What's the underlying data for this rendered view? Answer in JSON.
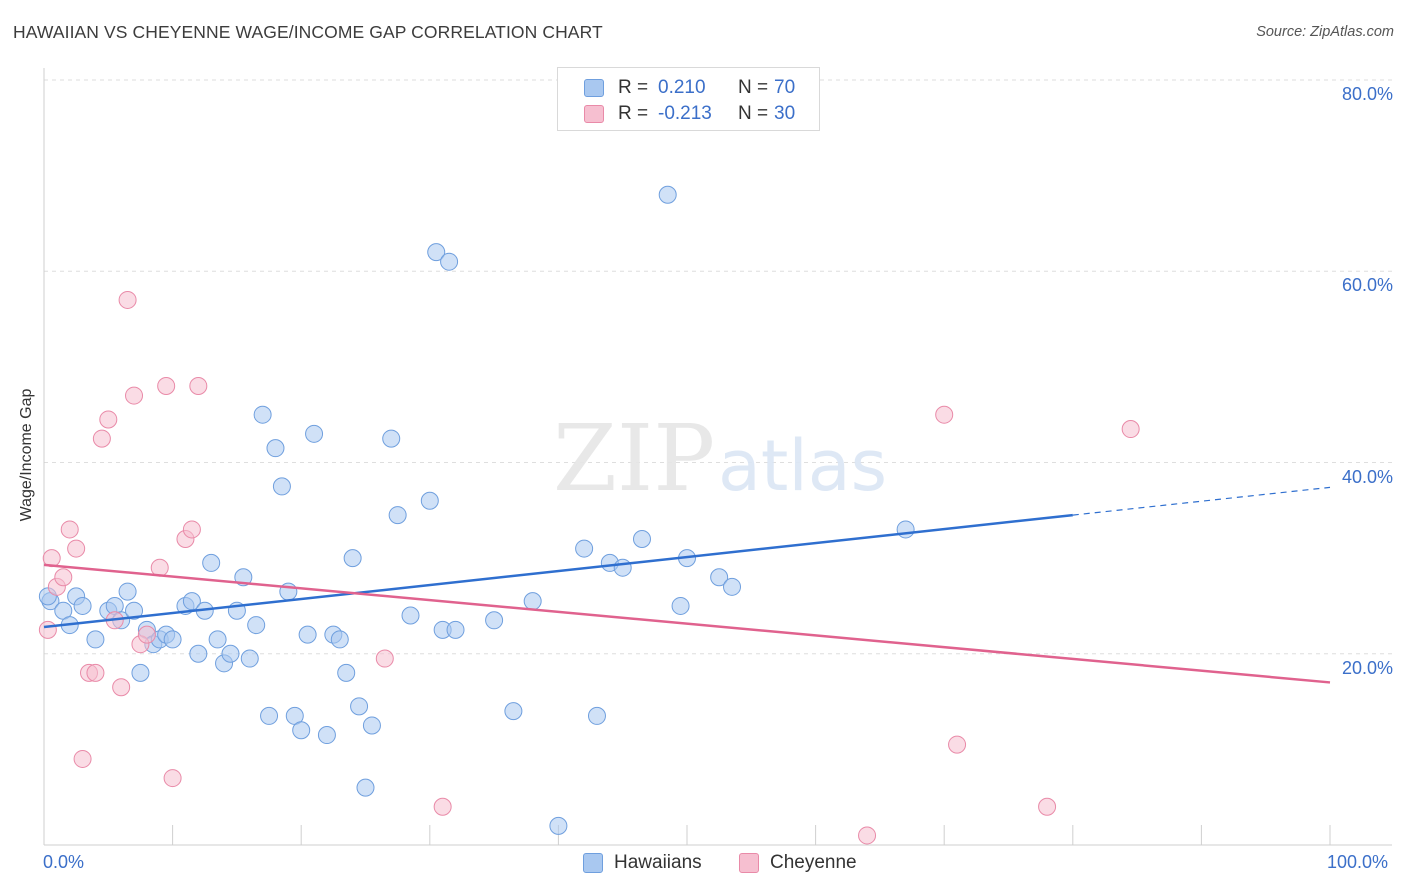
{
  "title": "HAWAIIAN VS CHEYENNE WAGE/INCOME GAP CORRELATION CHART",
  "source": "Source: ZipAtlas.com",
  "watermark": {
    "zip": "ZIP",
    "atlas": "atlas"
  },
  "legend_top": [
    {
      "r_label": "R =",
      "r_value": "0.210",
      "n_label": "N =",
      "n_value": "70",
      "color": "#a9c8f0",
      "border": "#6f9fde"
    },
    {
      "r_label": "R =",
      "r_value": "-0.213",
      "n_label": "N =",
      "n_value": "30",
      "color": "#f6bfd0",
      "border": "#e98aa8"
    }
  ],
  "legend_bottom": [
    {
      "label": "Hawaiians",
      "color": "#a9c8f0",
      "border": "#6f9fde"
    },
    {
      "label": "Cheyenne",
      "color": "#f6bfd0",
      "border": "#e98aa8"
    }
  ],
  "chart_data": {
    "type": "scatter",
    "title": "HAWAIIAN VS CHEYENNE WAGE/INCOME GAP CORRELATION CHART",
    "xlabel": "",
    "ylabel": "Wage/Income Gap",
    "xlim": [
      0,
      100
    ],
    "ylim": [
      0,
      80
    ],
    "x_tick_labels": [
      "0.0%",
      "100.0%"
    ],
    "y_ticks": [
      20,
      40,
      60,
      80
    ],
    "y_tick_labels": [
      "20.0%",
      "40.0%",
      "60.0%",
      "80.0%"
    ],
    "grid": true,
    "legend_position": "top-center",
    "series": [
      {
        "name": "Hawaiians",
        "color": "#a9c8f0",
        "line_color": "#2f6fcf",
        "trend": {
          "x0": 0,
          "y0": 22.8,
          "x1": 80,
          "y1": 34.5,
          "dash_to_x": 100,
          "dash_to_y": 37.4
        },
        "points": [
          [
            0.5,
            25.5
          ],
          [
            1.5,
            24.5
          ],
          [
            2,
            23
          ],
          [
            2.5,
            26
          ],
          [
            3,
            25
          ],
          [
            4,
            21.5
          ],
          [
            5,
            24.5
          ],
          [
            5.5,
            25
          ],
          [
            6,
            23.5
          ],
          [
            6.5,
            26.5
          ],
          [
            7,
            24.5
          ],
          [
            7.5,
            18
          ],
          [
            8,
            22.5
          ],
          [
            8.5,
            21
          ],
          [
            9,
            21.5
          ],
          [
            9.5,
            22
          ],
          [
            10,
            21.5
          ],
          [
            11,
            25
          ],
          [
            11.5,
            25.5
          ],
          [
            12,
            20
          ],
          [
            12.5,
            24.5
          ],
          [
            13,
            29.5
          ],
          [
            13.5,
            21.5
          ],
          [
            14,
            19
          ],
          [
            14.5,
            20
          ],
          [
            15,
            24.5
          ],
          [
            15.5,
            28
          ],
          [
            16,
            19.5
          ],
          [
            16.5,
            23
          ],
          [
            17,
            45
          ],
          [
            17.5,
            13.5
          ],
          [
            18,
            41.5
          ],
          [
            18.5,
            37.5
          ],
          [
            19,
            26.5
          ],
          [
            19.5,
            13.5
          ],
          [
            20,
            12
          ],
          [
            20.5,
            22
          ],
          [
            21,
            43
          ],
          [
            22,
            11.5
          ],
          [
            22.5,
            22
          ],
          [
            23,
            21.5
          ],
          [
            23.5,
            18
          ],
          [
            24,
            30
          ],
          [
            24.5,
            14.5
          ],
          [
            25,
            6
          ],
          [
            25.5,
            12.5
          ],
          [
            27,
            42.5
          ],
          [
            27.5,
            34.5
          ],
          [
            28.5,
            24
          ],
          [
            30,
            36
          ],
          [
            30.5,
            62
          ],
          [
            31,
            22.5
          ],
          [
            31.5,
            61
          ],
          [
            32,
            22.5
          ],
          [
            35,
            23.5
          ],
          [
            36.5,
            14
          ],
          [
            38,
            25.5
          ],
          [
            40,
            2
          ],
          [
            42,
            31
          ],
          [
            43,
            13.5
          ],
          [
            44,
            29.5
          ],
          [
            45,
            29
          ],
          [
            46.5,
            32
          ],
          [
            48.5,
            68
          ],
          [
            49.5,
            25
          ],
          [
            50,
            30
          ],
          [
            52.5,
            28
          ],
          [
            53.5,
            27
          ],
          [
            67,
            33
          ],
          [
            0.3,
            26
          ]
        ]
      },
      {
        "name": "Cheyenne",
        "color": "#f6bfd0",
        "line_color": "#e0628e",
        "trend": {
          "x0": 0,
          "y0": 29.3,
          "x1": 100,
          "y1": 17.0
        },
        "points": [
          [
            0.3,
            22.5
          ],
          [
            0.6,
            30
          ],
          [
            1,
            27
          ],
          [
            1.5,
            28
          ],
          [
            2,
            33
          ],
          [
            2.5,
            31
          ],
          [
            3,
            9
          ],
          [
            3.5,
            18
          ],
          [
            4,
            18
          ],
          [
            4.5,
            42.5
          ],
          [
            5,
            44.5
          ],
          [
            5.5,
            23.5
          ],
          [
            6,
            16.5
          ],
          [
            6.5,
            57
          ],
          [
            7,
            47
          ],
          [
            7.5,
            21
          ],
          [
            8,
            22
          ],
          [
            9,
            29
          ],
          [
            9.5,
            48
          ],
          [
            10,
            7
          ],
          [
            11,
            32
          ],
          [
            11.5,
            33
          ],
          [
            12,
            48
          ],
          [
            26.5,
            19.5
          ],
          [
            31,
            4
          ],
          [
            64,
            1
          ],
          [
            70,
            45
          ],
          [
            71,
            10.5
          ],
          [
            78,
            4
          ],
          [
            84.5,
            43.5
          ]
        ]
      }
    ]
  }
}
